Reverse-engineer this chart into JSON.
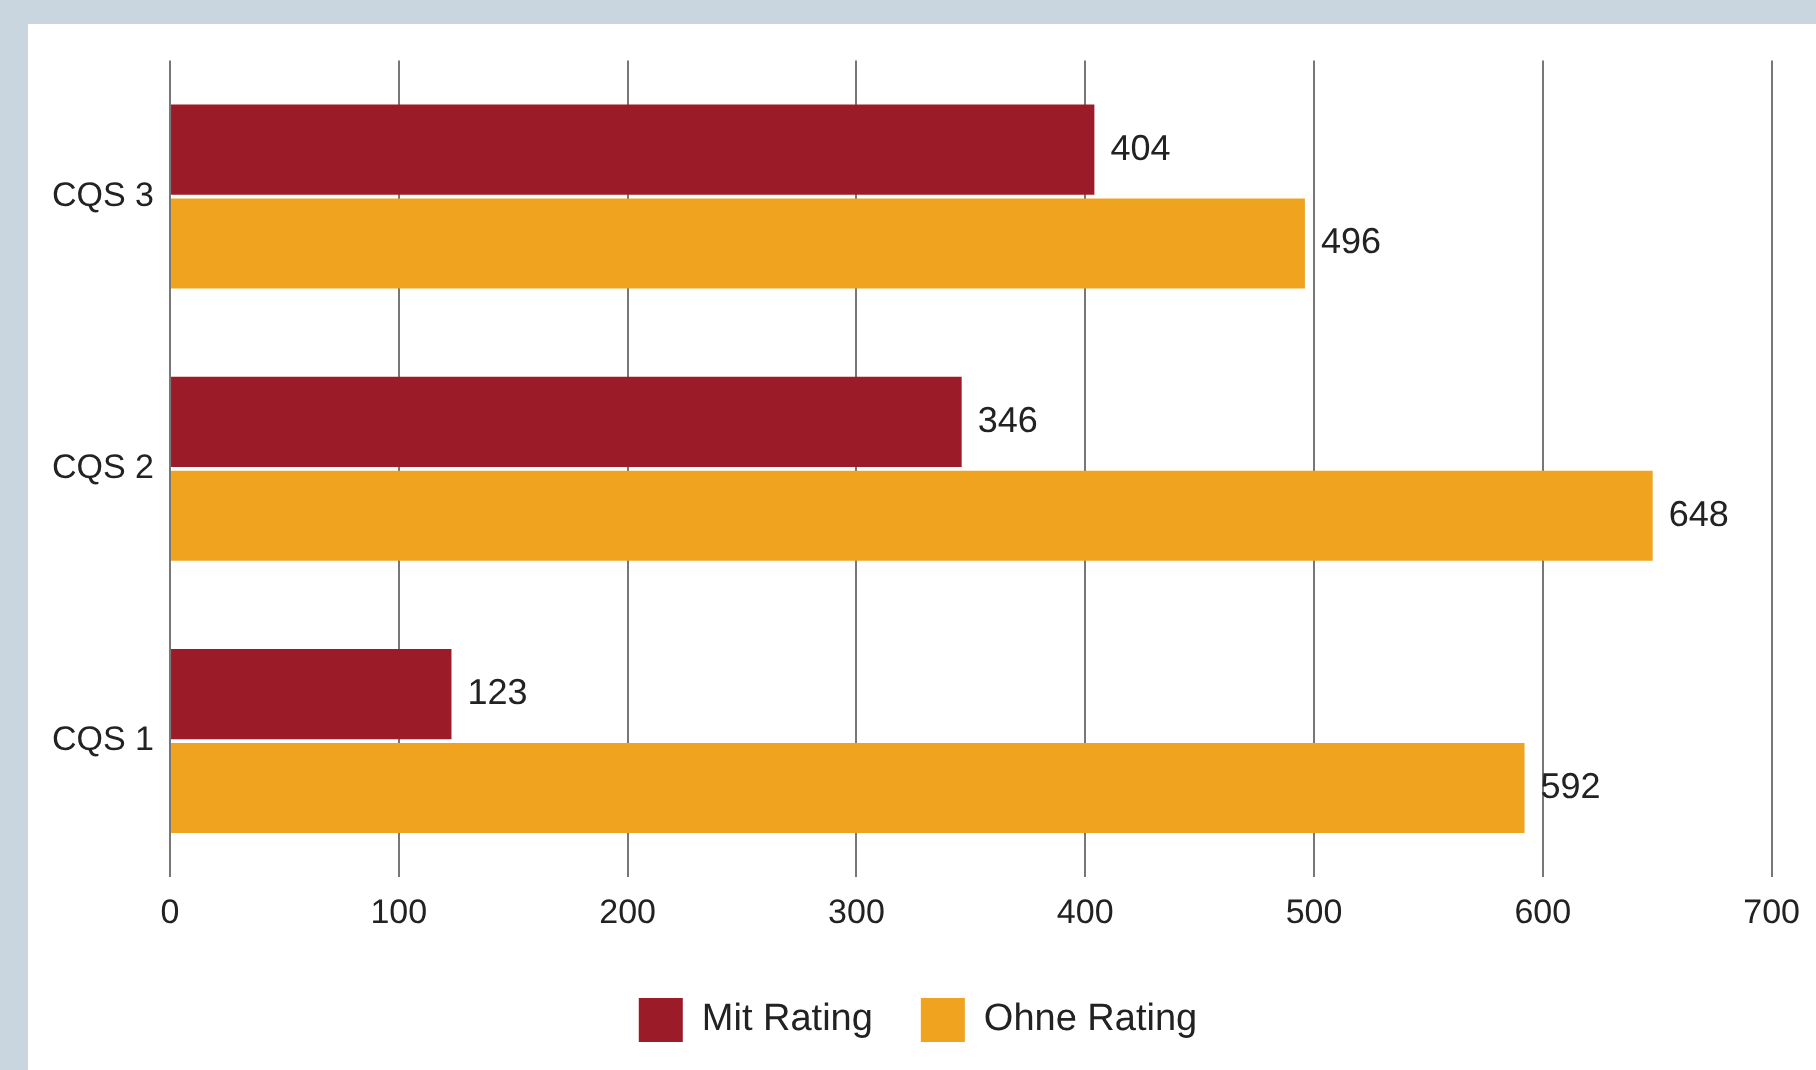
{
  "chart_data": {
    "type": "bar",
    "orientation": "horizontal",
    "categories": [
      "CQS 3",
      "CQS 2",
      "CQS 1"
    ],
    "series": [
      {
        "name": "Mit Rating",
        "color": "#9b1c28",
        "values": [
          404,
          346,
          123
        ]
      },
      {
        "name": "Ohne Rating",
        "color": "#f0a31f",
        "values": [
          496,
          648,
          592
        ]
      }
    ],
    "xlim": [
      0,
      700
    ],
    "xticks": [
      0,
      100,
      200,
      300,
      400,
      500,
      600,
      700
    ],
    "grid": "x",
    "legend": "bottom",
    "data_labels": true
  }
}
